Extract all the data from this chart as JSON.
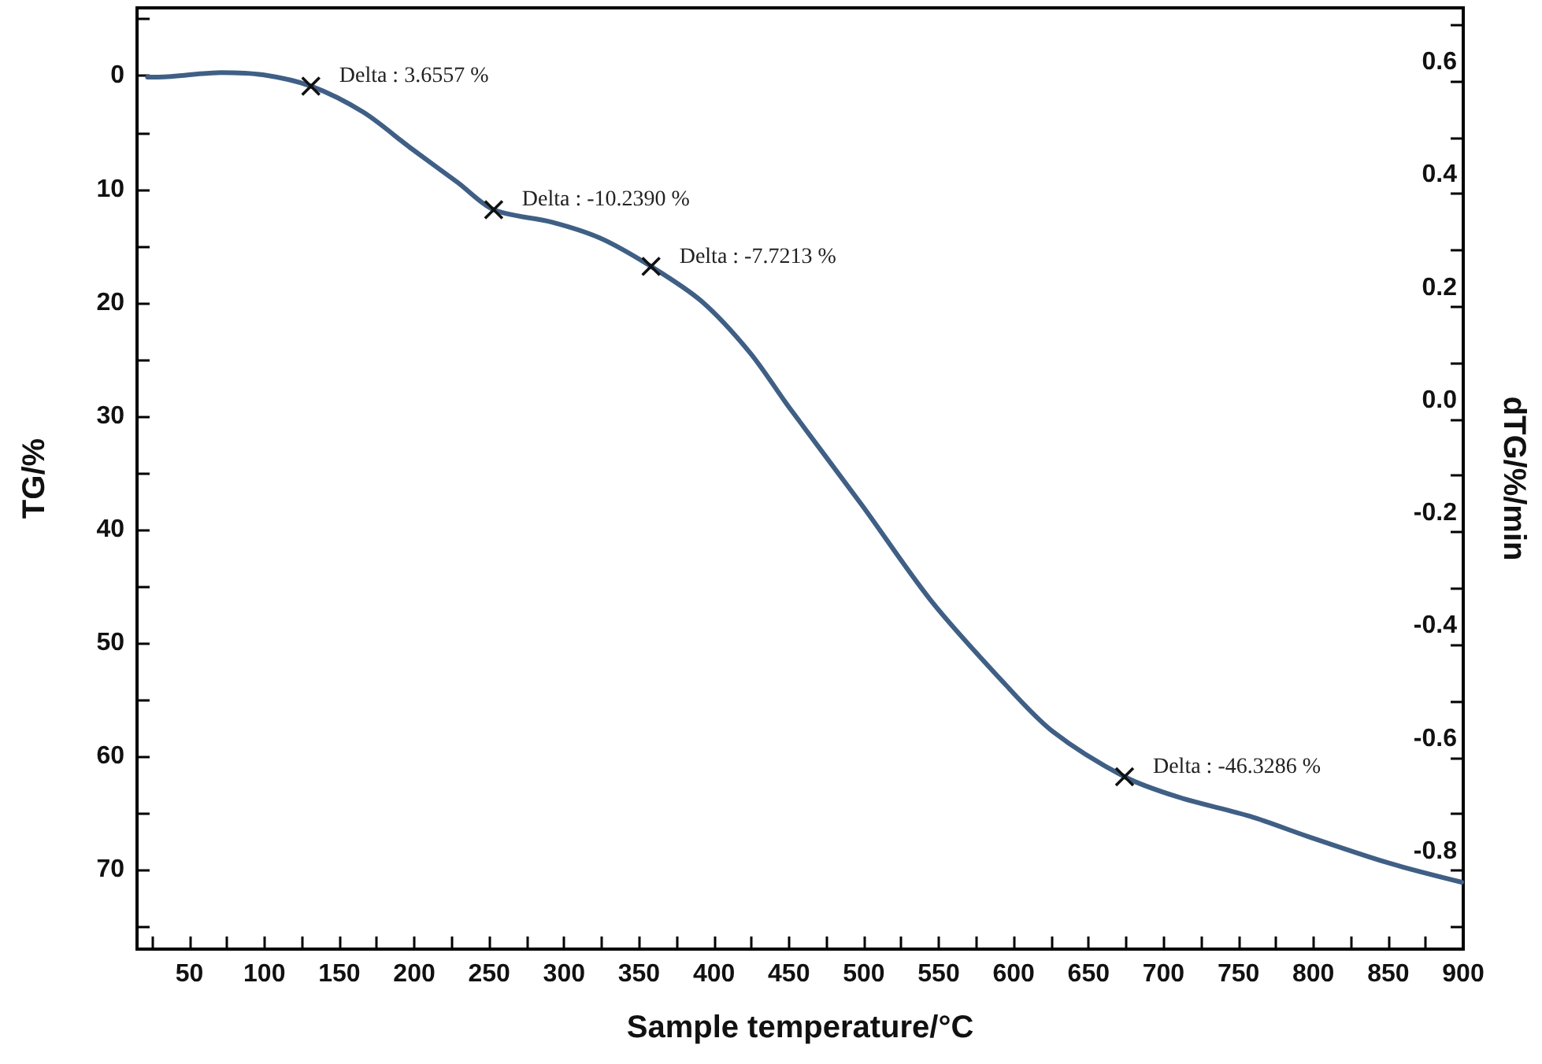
{
  "chart_data": {
    "type": "line",
    "xlabel": "Sample temperature/°C",
    "ylabel": "TG/%",
    "y2label": "dTG/%/min",
    "series": [
      {
        "color": "#3f5f85",
        "x": [
          22,
          29,
          71,
          99,
          131,
          166,
          197,
          229,
          253,
          292,
          324,
          358,
          392,
          424,
          450,
          499,
          545,
          594,
          626,
          674,
          710,
          758,
          797,
          850,
          899
        ],
        "values": [
          0.1,
          0.1,
          -0.3,
          -0.1,
          0.9,
          3.2,
          6.3,
          9.4,
          11.8,
          12.9,
          14.3,
          16.8,
          19.9,
          24.4,
          29.2,
          37.9,
          46.3,
          53.6,
          57.8,
          61.8,
          63.6,
          65.3,
          67.1,
          69.4,
          71.1
        ]
      }
    ],
    "annotations": [
      {
        "text": "Delta : 3.6557 %",
        "x": 131,
        "y": 0.9
      },
      {
        "text": "Delta : -10.2390 %",
        "x": 253,
        "y": 11.8
      },
      {
        "text": "Delta : -7.7213 %",
        "x": 358,
        "y": 16.8
      },
      {
        "text": "Delta : -46.3286 %",
        "x": 674,
        "y": 61.8
      }
    ],
    "xlim": [
      15,
      900
    ],
    "xticks": [
      {
        "value": 25,
        "label": null
      },
      50,
      {
        "value": 75,
        "label": null
      },
      100,
      {
        "value": 125,
        "label": null
      },
      150,
      {
        "value": 175,
        "label": null
      },
      200,
      {
        "value": 225,
        "label": null
      },
      250,
      {
        "value": 275,
        "label": null
      },
      300,
      {
        "value": 325,
        "label": null
      },
      350,
      {
        "value": 375,
        "label": null
      },
      400,
      {
        "value": 425,
        "label": null
      },
      450,
      {
        "value": 475,
        "label": null
      },
      500,
      {
        "value": 525,
        "label": null
      },
      550,
      {
        "value": 575,
        "label": null
      },
      600,
      {
        "value": 625,
        "label": null
      },
      650,
      {
        "value": 675,
        "label": null
      },
      700,
      {
        "value": 725,
        "label": null
      },
      750,
      {
        "value": 775,
        "label": null
      },
      800,
      {
        "value": 825,
        "label": null
      },
      850,
      {
        "value": 875,
        "label": null
      },
      900
    ],
    "ylim": [
      77,
      -6
    ],
    "yticks": [
      {
        "value": -5,
        "label": null
      },
      0,
      {
        "value": 5,
        "label": null
      },
      10,
      {
        "value": 15,
        "label": null
      },
      20,
      {
        "value": 25,
        "label": null
      },
      30,
      {
        "value": 35,
        "label": null
      },
      40,
      {
        "value": 45,
        "label": null
      },
      50,
      {
        "value": 55,
        "label": null
      },
      60,
      {
        "value": 65,
        "label": null
      },
      70,
      {
        "value": 75,
        "label": null
      }
    ],
    "y2lim": [
      -0.94,
      0.73
    ],
    "y2ticks": [
      {
        "value": 0.7,
        "label": null
      },
      {
        "value": 0.6,
        "label": "0.6"
      },
      {
        "value": 0.5,
        "label": null
      },
      {
        "value": 0.4,
        "label": "0.4"
      },
      {
        "value": 0.3,
        "label": null
      },
      {
        "value": 0.2,
        "label": "0.2"
      },
      {
        "value": 0.1,
        "label": null
      },
      {
        "value": 0,
        "label": "0.0"
      },
      {
        "value": -0.1,
        "label": null
      },
      {
        "value": -0.2,
        "label": "-0.2"
      },
      {
        "value": -0.3,
        "label": null
      },
      {
        "value": -0.4,
        "label": "-0.4"
      },
      {
        "value": -0.5,
        "label": null
      },
      {
        "value": -0.6,
        "label": "-0.6"
      },
      {
        "value": -0.7,
        "label": null
      },
      {
        "value": -0.8,
        "label": "-0.8"
      },
      {
        "value": -0.9,
        "label": null
      }
    ],
    "marker": "none",
    "line_style": "solid"
  }
}
